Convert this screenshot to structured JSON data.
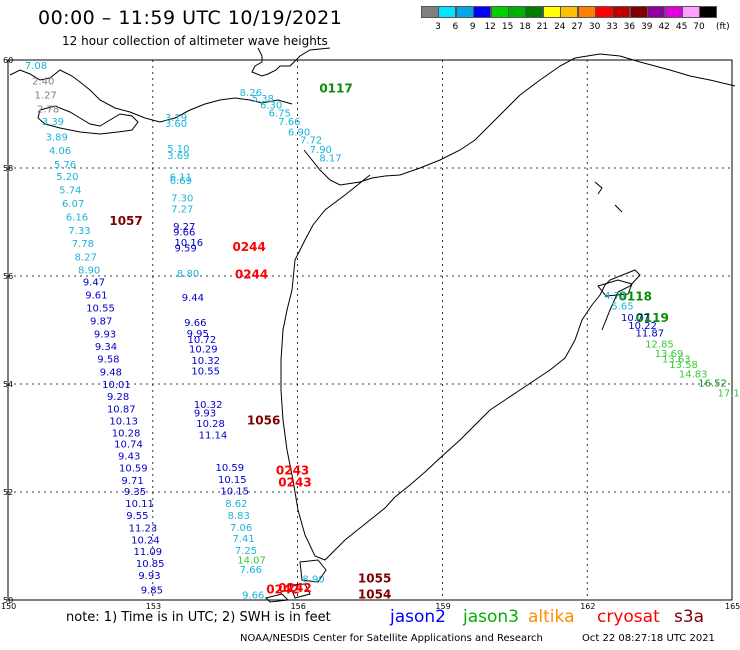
{
  "header": {
    "title": "00:00 – 11:59 UTC 10/19/2021",
    "subtitle": "12 hour collection of altimeter wave heights"
  },
  "legend": {
    "unit": "(ft)",
    "bins": [
      {
        "label": "3",
        "color": "#7f7f7f"
      },
      {
        "label": "6",
        "color": "#00e5ff"
      },
      {
        "label": "9",
        "color": "#00a6e8"
      },
      {
        "label": "12",
        "color": "#0000ff"
      },
      {
        "label": "15",
        "color": "#00d000"
      },
      {
        "label": "18",
        "color": "#00b000"
      },
      {
        "label": "21",
        "color": "#007d00"
      },
      {
        "label": "24",
        "color": "#ffff00"
      },
      {
        "label": "27",
        "color": "#ffc000"
      },
      {
        "label": "30",
        "color": "#ff8000"
      },
      {
        "label": "33",
        "color": "#ff0000"
      },
      {
        "label": "36",
        "color": "#c00000"
      },
      {
        "label": "39",
        "color": "#800000"
      },
      {
        "label": "42",
        "color": "#9000a0"
      },
      {
        "label": "45",
        "color": "#e000e0"
      },
      {
        "label": "70",
        "color": "#ffa0ff"
      },
      {
        "label": "",
        "color": "#000000"
      }
    ]
  },
  "colors": {
    "gray": "#7f7f7f",
    "cyan": "#1ab4d8",
    "navy": "#0000c8",
    "green": "#0a8c0a",
    "lightgreen": "#33cc33",
    "red": "#ff0000",
    "darkred": "#800000"
  },
  "axes": {
    "lat_labels": [
      "60",
      "58",
      "56",
      "54",
      "52",
      "50"
    ],
    "lon_labels": [
      "150",
      "153",
      "156",
      "159",
      "162",
      "165"
    ]
  },
  "map_data": {
    "pass_labels": [
      {
        "text": "0117",
        "lon": 156.45,
        "lat": 59.4,
        "color": "green"
      },
      {
        "text": "1057",
        "lon": 152.1,
        "lat": 56.94,
        "color": "darkred"
      },
      {
        "text": "0244",
        "lon": 154.65,
        "lat": 56.46,
        "color": "red"
      },
      {
        "text": "0244",
        "lon": 154.7,
        "lat": 55.95,
        "color": "red"
      },
      {
        "text": "0118",
        "lon": 162.65,
        "lat": 55.55,
        "color": "green"
      },
      {
        "text": "0119",
        "lon": 163.0,
        "lat": 55.15,
        "color": "green"
      },
      {
        "text": "1056",
        "lon": 154.95,
        "lat": 53.25,
        "color": "darkred"
      },
      {
        "text": "0243",
        "lon": 155.55,
        "lat": 52.32,
        "color": "red"
      },
      {
        "text": "0243",
        "lon": 155.6,
        "lat": 52.1,
        "color": "red"
      },
      {
        "text": "1055",
        "lon": 157.25,
        "lat": 50.32,
        "color": "darkred"
      },
      {
        "text": "1054",
        "lon": 157.25,
        "lat": 50.03,
        "color": "darkred"
      },
      {
        "text": "0242",
        "lon": 155.6,
        "lat": 50.15,
        "color": "red"
      },
      {
        "text": "0242",
        "lon": 155.35,
        "lat": 50.12,
        "color": "red"
      }
    ],
    "readings": [
      {
        "text": "7.08",
        "lon": 150.35,
        "lat": 59.83,
        "color": "cyan"
      },
      {
        "text": "2.40",
        "lon": 150.5,
        "lat": 59.55,
        "color": "gray"
      },
      {
        "text": "1.27",
        "lon": 150.55,
        "lat": 59.29,
        "color": "gray"
      },
      {
        "text": "2.78",
        "lon": 150.6,
        "lat": 59.03,
        "color": "gray"
      },
      {
        "text": "3.39",
        "lon": 150.7,
        "lat": 58.8,
        "color": "cyan"
      },
      {
        "text": "3.89",
        "lon": 150.78,
        "lat": 58.51,
        "color": "cyan"
      },
      {
        "text": "4.06",
        "lon": 150.85,
        "lat": 58.26,
        "color": "cyan"
      },
      {
        "text": "5.76",
        "lon": 150.95,
        "lat": 58.0,
        "color": "cyan"
      },
      {
        "text": "5.20",
        "lon": 151.0,
        "lat": 57.78,
        "color": "cyan"
      },
      {
        "text": "5.74",
        "lon": 151.06,
        "lat": 57.53,
        "color": "cyan"
      },
      {
        "text": "6.07",
        "lon": 151.12,
        "lat": 57.28,
        "color": "cyan"
      },
      {
        "text": "6.16",
        "lon": 151.2,
        "lat": 57.03,
        "color": "cyan"
      },
      {
        "text": "7.33",
        "lon": 151.25,
        "lat": 56.78,
        "color": "cyan"
      },
      {
        "text": "7.78",
        "lon": 151.32,
        "lat": 56.54,
        "color": "cyan"
      },
      {
        "text": "8.27",
        "lon": 151.38,
        "lat": 56.29,
        "color": "cyan"
      },
      {
        "text": "8.90",
        "lon": 151.45,
        "lat": 56.05,
        "color": "cyan"
      },
      {
        "text": "9.47",
        "lon": 151.55,
        "lat": 55.82,
        "color": "navy"
      },
      {
        "text": "9.61",
        "lon": 151.6,
        "lat": 55.58,
        "color": "navy"
      },
      {
        "text": "10.55",
        "lon": 151.62,
        "lat": 55.34,
        "color": "navy"
      },
      {
        "text": "9.87",
        "lon": 151.7,
        "lat": 55.1,
        "color": "navy"
      },
      {
        "text": "9.93",
        "lon": 151.78,
        "lat": 54.86,
        "color": "navy"
      },
      {
        "text": "9.34",
        "lon": 151.8,
        "lat": 54.63,
        "color": "navy"
      },
      {
        "text": "9.58",
        "lon": 151.85,
        "lat": 54.4,
        "color": "navy"
      },
      {
        "text": "9.48",
        "lon": 151.9,
        "lat": 54.16,
        "color": "navy"
      },
      {
        "text": "10.01",
        "lon": 151.95,
        "lat": 53.93,
        "color": "navy"
      },
      {
        "text": "9.28",
        "lon": 152.05,
        "lat": 53.7,
        "color": "navy"
      },
      {
        "text": "10.87",
        "lon": 152.05,
        "lat": 53.47,
        "color": "navy"
      },
      {
        "text": "10.13",
        "lon": 152.1,
        "lat": 53.25,
        "color": "navy"
      },
      {
        "text": "10.28",
        "lon": 152.15,
        "lat": 53.03,
        "color": "navy"
      },
      {
        "text": "10.74",
        "lon": 152.2,
        "lat": 52.82,
        "color": "navy"
      },
      {
        "text": "9.43",
        "lon": 152.28,
        "lat": 52.6,
        "color": "navy"
      },
      {
        "text": "10.59",
        "lon": 152.3,
        "lat": 52.38,
        "color": "navy"
      },
      {
        "text": "9.71",
        "lon": 152.35,
        "lat": 52.15,
        "color": "navy"
      },
      {
        "text": "9.35",
        "lon": 152.4,
        "lat": 51.94,
        "color": "navy"
      },
      {
        "text": "10.11",
        "lon": 152.43,
        "lat": 51.72,
        "color": "navy"
      },
      {
        "text": "9.55",
        "lon": 152.45,
        "lat": 51.5,
        "color": "navy"
      },
      {
        "text": "11.23",
        "lon": 152.5,
        "lat": 51.27,
        "color": "navy"
      },
      {
        "text": "10.24",
        "lon": 152.55,
        "lat": 51.05,
        "color": "navy"
      },
      {
        "text": "11.09",
        "lon": 152.6,
        "lat": 50.83,
        "color": "navy"
      },
      {
        "text": "10.85",
        "lon": 152.65,
        "lat": 50.61,
        "color": "navy"
      },
      {
        "text": "9.93",
        "lon": 152.7,
        "lat": 50.39,
        "color": "navy"
      },
      {
        "text": "9.85",
        "lon": 152.75,
        "lat": 50.12,
        "color": "navy"
      },
      {
        "text": "8.26",
        "lon": 154.8,
        "lat": 59.33,
        "color": "cyan"
      },
      {
        "text": "5.38",
        "lon": 155.05,
        "lat": 59.22,
        "color": "cyan"
      },
      {
        "text": "6.30",
        "lon": 155.22,
        "lat": 59.1,
        "color": "cyan"
      },
      {
        "text": "6.75",
        "lon": 155.4,
        "lat": 58.95,
        "color": "cyan"
      },
      {
        "text": "7.66",
        "lon": 155.6,
        "lat": 58.8,
        "color": "cyan"
      },
      {
        "text": "6.90",
        "lon": 155.8,
        "lat": 58.6,
        "color": "cyan"
      },
      {
        "text": "7.72",
        "lon": 156.05,
        "lat": 58.45,
        "color": "cyan"
      },
      {
        "text": "7.90",
        "lon": 156.25,
        "lat": 58.28,
        "color": "cyan"
      },
      {
        "text": "8.17",
        "lon": 156.45,
        "lat": 58.12,
        "color": "cyan"
      },
      {
        "text": "3.19",
        "lon": 153.25,
        "lat": 58.87,
        "color": "cyan"
      },
      {
        "text": "3.60",
        "lon": 153.25,
        "lat": 58.76,
        "color": "cyan"
      },
      {
        "text": "5.10",
        "lon": 153.3,
        "lat": 58.3,
        "color": "cyan"
      },
      {
        "text": "3.69",
        "lon": 153.3,
        "lat": 58.17,
        "color": "cyan"
      },
      {
        "text": "6.11",
        "lon": 153.35,
        "lat": 57.77,
        "color": "cyan"
      },
      {
        "text": "6.69",
        "lon": 153.35,
        "lat": 57.7,
        "color": "cyan"
      },
      {
        "text": "7.30",
        "lon": 153.38,
        "lat": 57.38,
        "color": "cyan"
      },
      {
        "text": "7.27",
        "lon": 153.38,
        "lat": 57.18,
        "color": "cyan"
      },
      {
        "text": "9.27",
        "lon": 153.42,
        "lat": 56.85,
        "color": "navy"
      },
      {
        "text": "9.66",
        "lon": 153.42,
        "lat": 56.75,
        "color": "navy"
      },
      {
        "text": "10.16",
        "lon": 153.45,
        "lat": 56.56,
        "color": "navy"
      },
      {
        "text": "9.59",
        "lon": 153.45,
        "lat": 56.45,
        "color": "navy"
      },
      {
        "text": "8.80",
        "lon": 153.5,
        "lat": 55.98,
        "color": "cyan"
      },
      {
        "text": "9.44",
        "lon": 153.6,
        "lat": 55.54,
        "color": "navy"
      },
      {
        "text": "9.66",
        "lon": 153.65,
        "lat": 55.07,
        "color": "navy"
      },
      {
        "text": "9.95",
        "lon": 153.7,
        "lat": 54.87,
        "color": "navy"
      },
      {
        "text": "10.72",
        "lon": 153.72,
        "lat": 54.76,
        "color": "navy"
      },
      {
        "text": "10.29",
        "lon": 153.75,
        "lat": 54.58,
        "color": "navy"
      },
      {
        "text": "10.32",
        "lon": 153.8,
        "lat": 54.37,
        "color": "navy"
      },
      {
        "text": "10.55",
        "lon": 153.8,
        "lat": 54.18,
        "color": "navy"
      },
      {
        "text": "10.32",
        "lon": 153.85,
        "lat": 53.56,
        "color": "navy"
      },
      {
        "text": "9.93",
        "lon": 153.85,
        "lat": 53.4,
        "color": "navy"
      },
      {
        "text": "10.28",
        "lon": 153.9,
        "lat": 53.2,
        "color": "navy"
      },
      {
        "text": "11.14",
        "lon": 153.95,
        "lat": 52.99,
        "color": "navy"
      },
      {
        "text": "10.59",
        "lon": 154.3,
        "lat": 52.39,
        "color": "navy"
      },
      {
        "text": "10.15",
        "lon": 154.35,
        "lat": 52.17,
        "color": "navy"
      },
      {
        "text": "10.15",
        "lon": 154.4,
        "lat": 51.95,
        "color": "navy"
      },
      {
        "text": "8.62",
        "lon": 154.5,
        "lat": 51.72,
        "color": "cyan"
      },
      {
        "text": "8.83",
        "lon": 154.55,
        "lat": 51.5,
        "color": "cyan"
      },
      {
        "text": "7.06",
        "lon": 154.6,
        "lat": 51.28,
        "color": "cyan"
      },
      {
        "text": "7.41",
        "lon": 154.65,
        "lat": 51.07,
        "color": "cyan"
      },
      {
        "text": "7.25",
        "lon": 154.7,
        "lat": 50.85,
        "color": "cyan"
      },
      {
        "text": "14.07",
        "lon": 154.75,
        "lat": 50.68,
        "color": "lightgreen"
      },
      {
        "text": "7.66",
        "lon": 154.8,
        "lat": 50.5,
        "color": "cyan"
      },
      {
        "text": "8.90",
        "lon": 156.1,
        "lat": 50.32,
        "color": "cyan"
      },
      {
        "text": "9.66",
        "lon": 154.85,
        "lat": 50.03,
        "color": "cyan"
      },
      {
        "text": "4.77",
        "lon": 162.35,
        "lat": 55.57,
        "color": "cyan"
      },
      {
        "text": "5.65",
        "lon": 162.5,
        "lat": 55.38,
        "color": "cyan"
      },
      {
        "text": "10.77",
        "lon": 162.7,
        "lat": 55.17,
        "color": "navy"
      },
      {
        "text": "10.22",
        "lon": 162.85,
        "lat": 55.02,
        "color": "navy"
      },
      {
        "text": "11.87",
        "lon": 163.0,
        "lat": 54.88,
        "color": "navy"
      },
      {
        "text": "12.85",
        "lon": 163.2,
        "lat": 54.68,
        "color": "lightgreen"
      },
      {
        "text": "13.69",
        "lon": 163.4,
        "lat": 54.5,
        "color": "lightgreen"
      },
      {
        "text": "13.63",
        "lon": 163.55,
        "lat": 54.4,
        "color": "lightgreen"
      },
      {
        "text": "13.58",
        "lon": 163.7,
        "lat": 54.3,
        "color": "lightgreen"
      },
      {
        "text": "14.83",
        "lon": 163.9,
        "lat": 54.12,
        "color": "lightgreen"
      },
      {
        "text": "16.52",
        "lon": 164.3,
        "lat": 53.95,
        "color": "green"
      },
      {
        "text": "17.1",
        "lon": 164.7,
        "lat": 53.77,
        "color": "lightgreen"
      }
    ]
  },
  "footer": {
    "note": "note:  1) Time is in UTC; 2) SWH is in feet",
    "satellites": [
      {
        "name": "jason2",
        "color": "#0000ff"
      },
      {
        "name": "jason3",
        "color": "#00b000"
      },
      {
        "name": "altika",
        "color": "#ff8c00"
      },
      {
        "name": "cryosat",
        "color": "#ff0000"
      },
      {
        "name": "s3a",
        "color": "#800000"
      }
    ],
    "credit": "NOAA/NESDIS Center for Satellite Applications and Research",
    "date": "Oct 22 08:27:18 UTC 2021"
  }
}
